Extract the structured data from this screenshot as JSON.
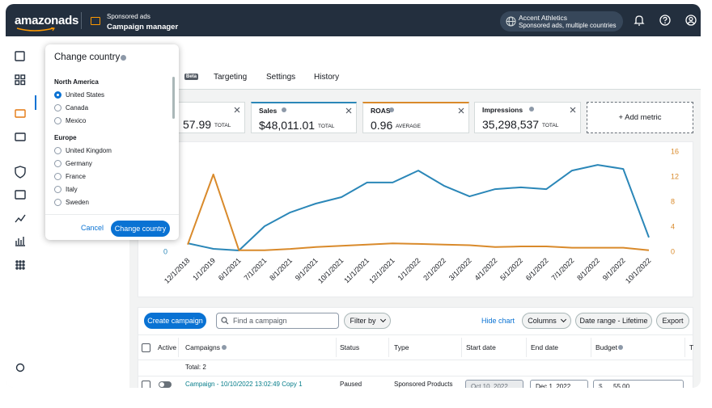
{
  "header": {
    "logo": "amazonads",
    "product": "Sponsored ads",
    "page": "Campaign manager",
    "account_name": "Accent Athletics",
    "account_scope": "Sponsored ads, multiple countries"
  },
  "tabs": [
    {
      "label": "s",
      "badge": "Beta"
    },
    {
      "label": "Targeting"
    },
    {
      "label": "Settings"
    },
    {
      "label": "History"
    }
  ],
  "metrics": [
    {
      "value": "57.99",
      "unit": "TOTAL"
    },
    {
      "label": "Sales",
      "value": "$48,011.01",
      "unit": "TOTAL",
      "color": "#2b87b8"
    },
    {
      "label": "ROAS",
      "value": "0.96",
      "unit": "AVERAGE",
      "color": "#d98a2b"
    },
    {
      "label": "Impressions",
      "value": "35,298,537",
      "unit": "TOTAL"
    }
  ],
  "add_metric": "+ Add metric",
  "chart_data": {
    "type": "line",
    "categories": [
      "12/1/2018",
      "1/1/2019",
      "6/1/2021",
      "7/1/2021",
      "8/1/2021",
      "9/1/2021",
      "10/1/2021",
      "11/1/2021",
      "12/1/2021",
      "1/1/2022",
      "2/1/2022",
      "3/1/2022",
      "4/1/2022",
      "5/1/2022",
      "6/1/2022",
      "7/1/2022",
      "8/1/2022",
      "9/1/2022",
      "10/1/2022"
    ],
    "series": [
      {
        "color": "#2b87b8",
        "axis": "y",
        "values": [
          440,
          160,
          80,
          1290,
          1980,
          2420,
          2740,
          3470,
          3470,
          4070,
          3310,
          2780,
          3140,
          3230,
          3140,
          4070,
          4350,
          4150,
          730
        ]
      },
      {
        "color": "#d98a2b",
        "axis": "y2",
        "values": [
          1.2,
          12.4,
          0.3,
          0.3,
          0.5,
          0.8,
          1.0,
          1.2,
          1.4,
          1.3,
          1.2,
          1.1,
          0.8,
          0.9,
          0.9,
          0.7,
          0.7,
          0.7,
          0.3
        ]
      }
    ],
    "ylim": [
      0,
      5000
    ],
    "yticks": [
      0
    ],
    "y2lim": [
      0,
      16
    ],
    "y2ticks": [
      0,
      4,
      8,
      12,
      16
    ]
  },
  "country_picker": {
    "title": "Change country",
    "groups": [
      {
        "name": "North America",
        "options": [
          "United States",
          "Canada",
          "Mexico"
        ]
      },
      {
        "name": "Europe",
        "options": [
          "United Kingdom",
          "Germany",
          "France",
          "Italy",
          "Sweden"
        ]
      }
    ],
    "selected": "United States",
    "cancel": "Cancel",
    "confirm": "Change country"
  },
  "toolbar": {
    "create": "Create campaign",
    "search_placeholder": "Find a campaign",
    "filter": "Filter by",
    "hide_chart": "Hide chart",
    "columns": "Columns",
    "date_range": "Date range - Lifetime",
    "export": "Export"
  },
  "table": {
    "columns": [
      "Active",
      "Campaigns",
      "Status",
      "Type",
      "Start date",
      "End date",
      "Budget",
      "T"
    ],
    "total": "Total: 2",
    "rows": [
      {
        "name": "Campaign - 10/10/2022 13:02:49 Copy 1",
        "status": "Paused",
        "type": "Sponsored Products",
        "start_date": "Oct 10, 2022",
        "end_date": "Dec 1, 2022",
        "budget_currency": "$",
        "budget": "55.00"
      }
    ]
  }
}
